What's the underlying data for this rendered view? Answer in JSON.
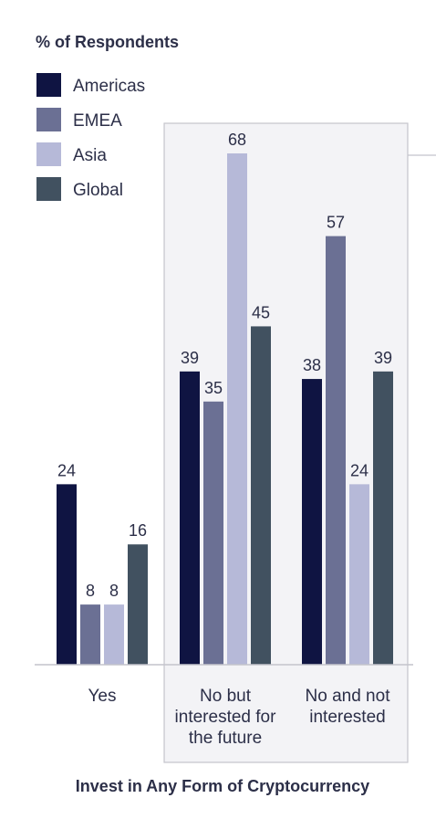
{
  "chart_data": {
    "type": "bar",
    "ylabel": "% of Respondents",
    "xlabel": "Invest in Any Form of Cryptocurrency",
    "categories": [
      [
        "Yes"
      ],
      [
        "No but",
        "interested for",
        "the future"
      ],
      [
        "No and not",
        "interested"
      ]
    ],
    "series": [
      {
        "name": "Americas",
        "color": "#0f1442",
        "values": [
          24,
          39,
          38
        ]
      },
      {
        "name": "EMEA",
        "color": "#6b7094",
        "values": [
          8,
          35,
          57
        ]
      },
      {
        "name": "Asia",
        "color": "#b6b9d8",
        "values": [
          8,
          68,
          24
        ]
      },
      {
        "name": "Global",
        "color": "#415160",
        "values": [
          16,
          45,
          39
        ]
      }
    ],
    "ylim": [
      0,
      70
    ],
    "grid": false,
    "legend_position": "top-left",
    "highlighted_categories": [
      1,
      2
    ]
  }
}
